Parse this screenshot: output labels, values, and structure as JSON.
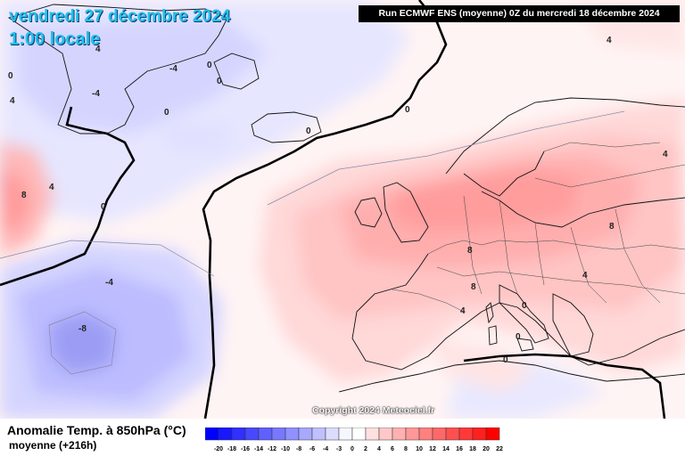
{
  "header": {
    "date_line1": "vendredi 27 décembre 2024",
    "date_line2": "1:00 locale"
  },
  "run_info": "Run ECMWF ENS (moyenne) 0Z du mercredi 18 décembre 2024",
  "copyright": "Copyright 2024 Meteociel.fr",
  "footer": {
    "title": "Anomalie Temp. à 850hPa (°C)",
    "subtitle": "moyenne  (+216h)"
  },
  "legend": {
    "values": [
      "-20",
      "-18",
      "-16",
      "-14",
      "-12",
      "-10",
      "-8",
      "-6",
      "-4",
      "-3",
      "0",
      "2",
      "4",
      "6",
      "8",
      "10",
      "12",
      "14",
      "16",
      "18",
      "20",
      "22"
    ],
    "colors": [
      "#0000ff",
      "#1818ff",
      "#3030ff",
      "#4848ff",
      "#6060ff",
      "#7878ff",
      "#9090ff",
      "#a8a8ff",
      "#c0c0ff",
      "#dcdcff",
      "#f6f6ff",
      "#ffffff",
      "#ffe0e0",
      "#ffc8c8",
      "#ffb0b0",
      "#ff9898",
      "#ff8080",
      "#ff6868",
      "#ff5050",
      "#ff3838",
      "#ff2020",
      "#ff0000"
    ]
  },
  "contour_labels": [
    {
      "text": "0"
    },
    {
      "text": "4"
    },
    {
      "text": "4"
    },
    {
      "text": "4"
    },
    {
      "text": "4"
    },
    {
      "text": "0"
    },
    {
      "text": "0"
    },
    {
      "text": "0"
    },
    {
      "text": "4"
    },
    {
      "text": "-4"
    },
    {
      "text": "-8"
    },
    {
      "text": "8"
    },
    {
      "text": "8"
    },
    {
      "text": "8"
    },
    {
      "text": "8"
    },
    {
      "text": "4"
    },
    {
      "text": "4"
    },
    {
      "text": "0"
    },
    {
      "text": "0"
    },
    {
      "text": "0"
    },
    {
      "text": "-4"
    },
    {
      "text": "-4"
    },
    {
      "text": "0"
    },
    {
      "text": "0"
    },
    {
      "text": "0"
    }
  ]
}
